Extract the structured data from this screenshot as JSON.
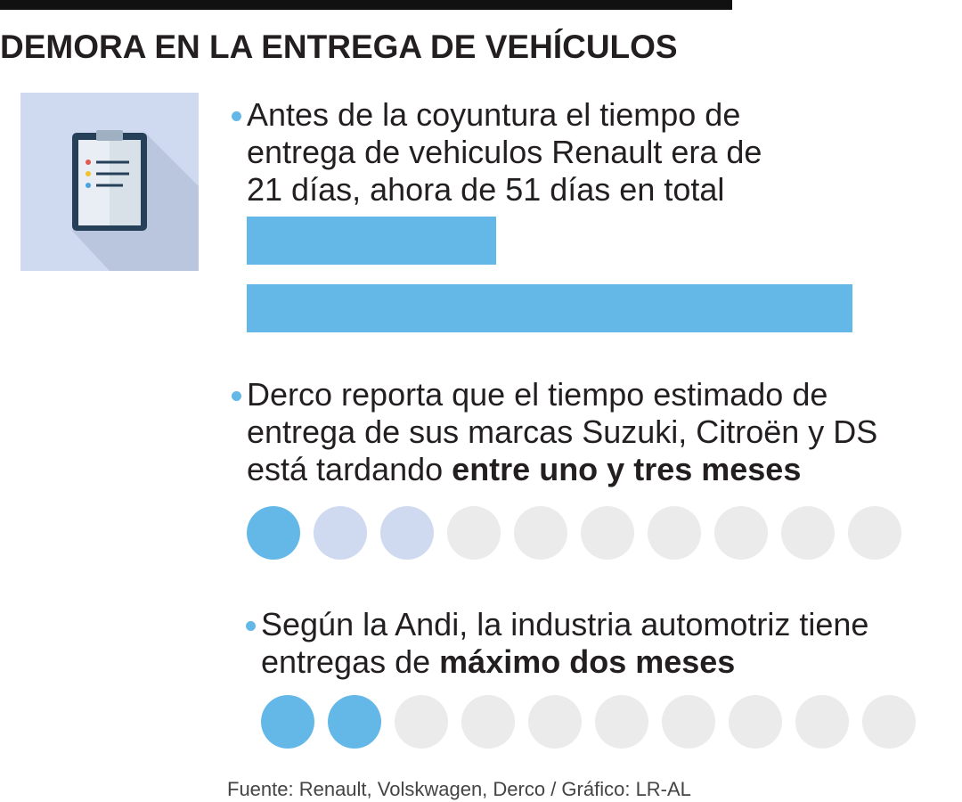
{
  "title": "DEMORA EN LA ENTREGA DE VEHÍCULOS",
  "renault": {
    "lines": [
      "Antes de la coyuntura el tiempo de",
      "entrega de vehiculos Renault era de",
      "21 días, ahora de 51 días en total"
    ],
    "bars": [
      21,
      51
    ],
    "xlim": [
      0,
      51
    ],
    "color": "#63b8e8"
  },
  "derco": {
    "lines": [
      "Derco reporta que el tiempo estimado de",
      "entrega de sus marcas Suzuki, Citroën y DS"
    ],
    "last_line": "está tardando",
    "bold": "entre uno y tres meses",
    "dots": {
      "filled": 1,
      "partial": 2,
      "empty": 7
    }
  },
  "andi": {
    "lines": [
      "Según la Andi, la industria automotriz tiene"
    ],
    "last_line": "entregas de",
    "bold": "máximo dos meses",
    "dots": {
      "filled": 2,
      "partial": 0,
      "empty": 8
    }
  },
  "dot_colors": {
    "filled": "#63b8e8",
    "partial": "#cfdaf0",
    "empty": "#ebebeb"
  },
  "source": "Fuente: Renault, Volskwagen, Derco / Gráfico: LR-AL"
}
